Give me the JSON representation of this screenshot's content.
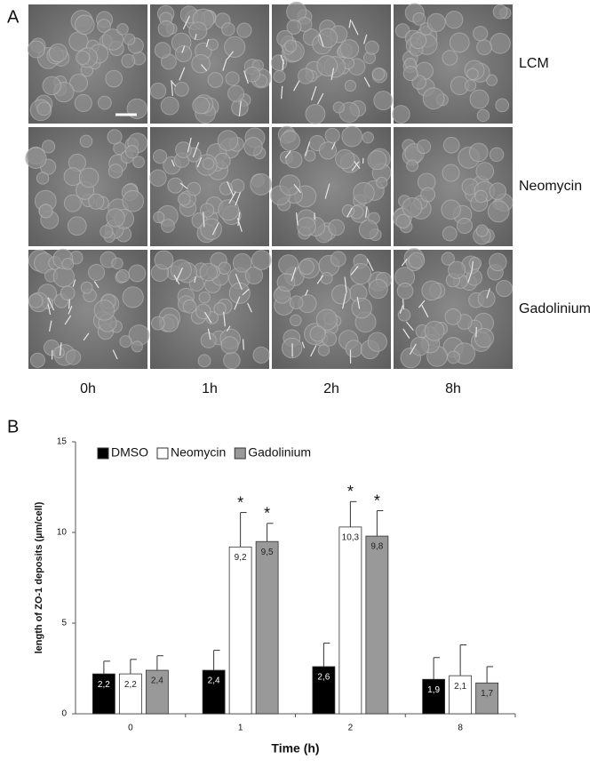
{
  "panel_a": {
    "label": "A",
    "rows": [
      "LCM",
      "Neomycin",
      "Gadolinium"
    ],
    "columns": [
      "0h",
      "1h",
      "2h",
      "8h"
    ]
  },
  "chart_data": {
    "type": "bar",
    "panel_label": "B",
    "x_label": "Time (h)",
    "y_label": "length of ZO-1 deposits (µm/cell)",
    "categories": [
      "0",
      "1",
      "2",
      "8"
    ],
    "series": [
      {
        "name": "DMSO",
        "color": "#000000",
        "values": [
          2.2,
          2.4,
          2.6,
          1.9
        ],
        "value_labels": [
          "2,2",
          "2,4",
          "2,6",
          "1,9"
        ],
        "errors": [
          0.7,
          1.1,
          1.3,
          1.2
        ],
        "significance": [
          null,
          null,
          null,
          null
        ]
      },
      {
        "name": "Neomycin",
        "color": "#ffffff",
        "values": [
          2.2,
          9.2,
          10.3,
          2.1
        ],
        "value_labels": [
          "2,2",
          "9,2",
          "10,3",
          "2,1"
        ],
        "errors": [
          0.8,
          1.9,
          1.4,
          1.7
        ],
        "significance": [
          null,
          "*",
          "*",
          null
        ]
      },
      {
        "name": "Gadolinium",
        "color": "#999999",
        "values": [
          2.4,
          9.5,
          9.8,
          1.7
        ],
        "value_labels": [
          "2,4",
          "9,5",
          "9,8",
          "1,7"
        ],
        "errors": [
          0.8,
          1.0,
          1.4,
          0.9
        ],
        "significance": [
          null,
          "*",
          "*",
          null
        ]
      }
    ],
    "ylim": [
      0,
      15
    ],
    "yticks": [
      0,
      5,
      10,
      15
    ],
    "legend": "top-left"
  }
}
